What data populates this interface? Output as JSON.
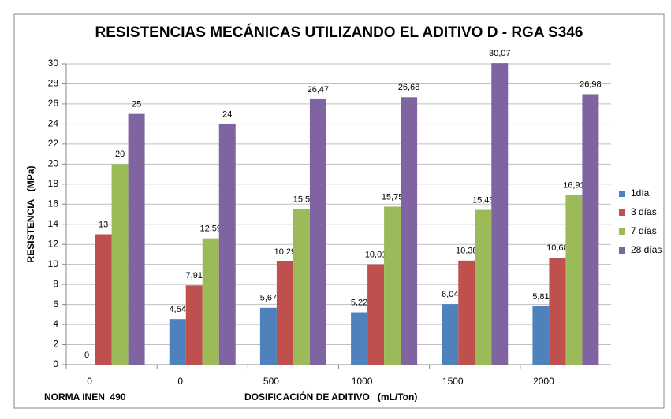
{
  "chart_data": {
    "type": "bar",
    "title": "RESISTENCIAS MECÁNICAS UTILIZANDO EL ADITIVO D - RGA S346",
    "y_label": "RESISTENCIA   (MPa)",
    "x_label": "DOSIFICACIÓN DE ADITIVO   (mL/Ton)",
    "annotation": "NORMA INEN  490",
    "categories": [
      "0",
      "0",
      "500",
      "1000",
      "1500",
      "2000"
    ],
    "series": [
      {
        "name": "1día",
        "color": "#4f81bd",
        "values": [
          0,
          4.54,
          5.67,
          5.22,
          6.04,
          5.81
        ],
        "value_labels": [
          "0",
          "4,54",
          "5,67",
          "5,22",
          "6,04",
          "5,81"
        ]
      },
      {
        "name": "3 días",
        "color": "#c0504d",
        "values": [
          13,
          7.91,
          10.29,
          10.01,
          10.38,
          10.68
        ],
        "value_labels": [
          "13",
          "7,91",
          "10,29",
          "10,01",
          "10,38",
          "10,68"
        ]
      },
      {
        "name": "7 días",
        "color": "#9bbb59",
        "values": [
          20,
          12.59,
          15.5,
          15.75,
          15.43,
          16.91
        ],
        "value_labels": [
          "20",
          "12,59",
          "15,5",
          "15,75",
          "15,43",
          "16,91"
        ]
      },
      {
        "name": "28 días",
        "color": "#8064a2",
        "values": [
          25,
          24,
          26.47,
          26.68,
          30.07,
          26.98
        ],
        "value_labels": [
          "25",
          "24",
          "26,47",
          "26,68",
          "30,07",
          "26,98"
        ]
      }
    ],
    "ylim": [
      0,
      30
    ],
    "yticks": [
      0,
      2,
      4,
      6,
      8,
      10,
      12,
      14,
      16,
      18,
      20,
      22,
      24,
      26,
      28,
      30
    ],
    "grid": true,
    "legend": "right"
  }
}
